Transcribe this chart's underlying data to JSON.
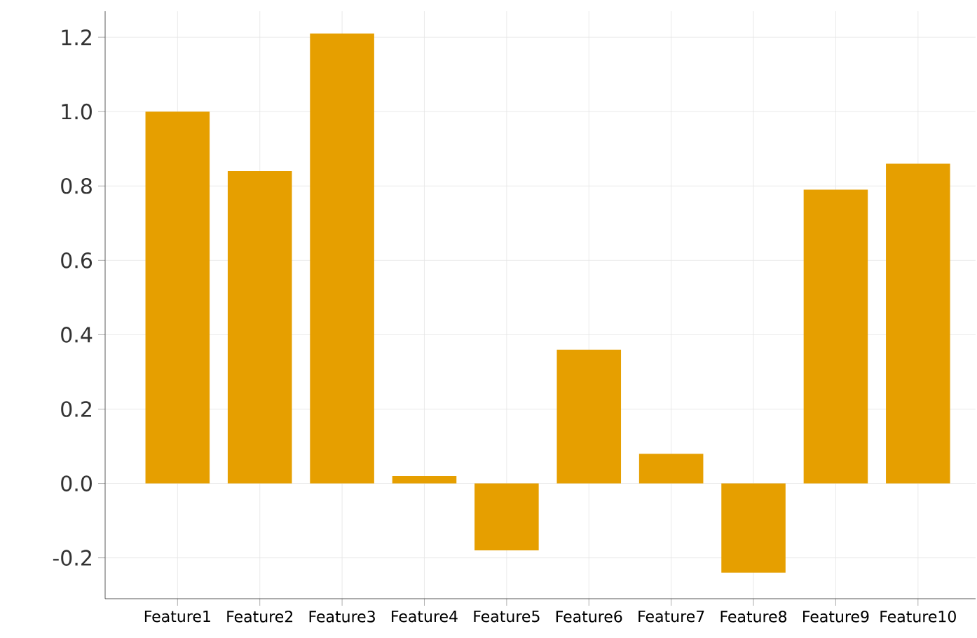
{
  "chart_data": {
    "type": "bar",
    "categories": [
      "Feature1",
      "Feature2",
      "Feature3",
      "Feature4",
      "Feature5",
      "Feature6",
      "Feature7",
      "Feature8",
      "Feature9",
      "Feature10"
    ],
    "values": [
      1.0,
      0.84,
      1.21,
      0.02,
      -0.18,
      0.36,
      0.08,
      -0.24,
      0.79,
      0.86
    ],
    "color": "#e69f00",
    "ylim": [
      -0.31,
      1.27
    ],
    "yticks": [
      -0.2,
      {
        "value": 0,
        "label": "0.0"
      },
      0.2,
      0.4,
      0.6,
      0.8,
      {
        "value": 1,
        "label": "1.0"
      },
      1.2
    ],
    "grid": true
  }
}
